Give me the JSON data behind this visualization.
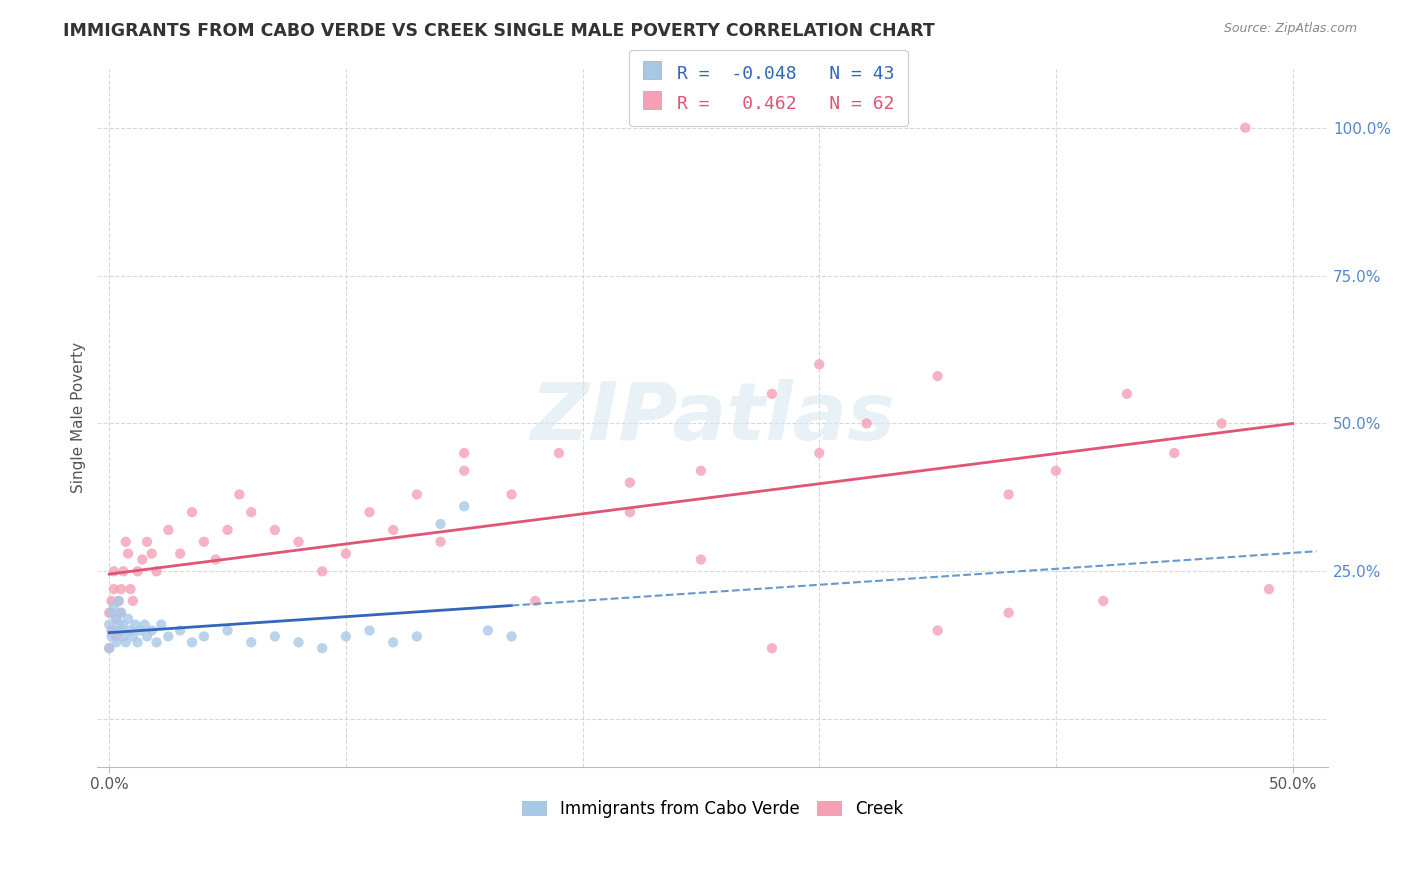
{
  "title": "IMMIGRANTS FROM CABO VERDE VS CREEK SINGLE MALE POVERTY CORRELATION CHART",
  "source_text": "Source: ZipAtlas.com",
  "ylabel": "Single Male Poverty",
  "legend_labels": [
    "Immigrants from Cabo Verde",
    "Creek"
  ],
  "R_cabo": -0.048,
  "N_cabo": 43,
  "R_creek": 0.462,
  "N_creek": 62,
  "x_ticks": [
    0.0,
    0.1,
    0.2,
    0.3,
    0.4,
    0.5
  ],
  "y_ticks_right": [
    0.0,
    0.25,
    0.5,
    0.75,
    1.0
  ],
  "y_tick_labels_right": [
    "",
    "25.0%",
    "50.0%",
    "75.0%",
    "100.0%"
  ],
  "xlim": [
    -0.005,
    0.515
  ],
  "ylim": [
    -0.08,
    1.1
  ],
  "color_cabo": "#a8c8e8",
  "color_creek": "#f4a0b5",
  "trend_color_cabo_solid": "#3366bb",
  "trend_color_cabo_dash": "#6699cc",
  "trend_color_creek": "#e05575",
  "background_color": "#ffffff",
  "grid_color": "#d8d8d8",
  "watermark": "ZIPatlas",
  "cabo_x": [
    0.0,
    0.0,
    0.001,
    0.001,
    0.002,
    0.002,
    0.003,
    0.003,
    0.004,
    0.004,
    0.005,
    0.005,
    0.006,
    0.006,
    0.007,
    0.008,
    0.009,
    0.01,
    0.011,
    0.012,
    0.013,
    0.015,
    0.016,
    0.018,
    0.02,
    0.022,
    0.025,
    0.03,
    0.035,
    0.04,
    0.05,
    0.06,
    0.07,
    0.08,
    0.09,
    0.1,
    0.11,
    0.12,
    0.13,
    0.14,
    0.15,
    0.16,
    0.17
  ],
  "cabo_y": [
    0.12,
    0.16,
    0.14,
    0.18,
    0.15,
    0.19,
    0.13,
    0.17,
    0.16,
    0.2,
    0.15,
    0.18,
    0.14,
    0.16,
    0.13,
    0.17,
    0.15,
    0.14,
    0.16,
    0.13,
    0.15,
    0.16,
    0.14,
    0.15,
    0.13,
    0.16,
    0.14,
    0.15,
    0.13,
    0.14,
    0.15,
    0.13,
    0.14,
    0.13,
    0.12,
    0.14,
    0.15,
    0.13,
    0.14,
    0.33,
    0.36,
    0.15,
    0.14
  ],
  "creek_x": [
    0.0,
    0.0,
    0.001,
    0.001,
    0.002,
    0.002,
    0.003,
    0.003,
    0.004,
    0.005,
    0.005,
    0.006,
    0.007,
    0.008,
    0.009,
    0.01,
    0.012,
    0.014,
    0.016,
    0.018,
    0.02,
    0.025,
    0.03,
    0.035,
    0.04,
    0.045,
    0.05,
    0.055,
    0.06,
    0.07,
    0.08,
    0.09,
    0.1,
    0.11,
    0.12,
    0.13,
    0.14,
    0.15,
    0.17,
    0.19,
    0.22,
    0.25,
    0.28,
    0.3,
    0.32,
    0.35,
    0.38,
    0.4,
    0.43,
    0.45,
    0.47,
    0.49,
    0.3,
    0.22,
    0.18,
    0.25,
    0.15,
    0.35,
    0.42,
    0.38,
    0.28,
    0.48
  ],
  "creek_y": [
    0.12,
    0.18,
    0.15,
    0.2,
    0.22,
    0.25,
    0.14,
    0.17,
    0.2,
    0.18,
    0.22,
    0.25,
    0.3,
    0.28,
    0.22,
    0.2,
    0.25,
    0.27,
    0.3,
    0.28,
    0.25,
    0.32,
    0.28,
    0.35,
    0.3,
    0.27,
    0.32,
    0.38,
    0.35,
    0.32,
    0.3,
    0.25,
    0.28,
    0.35,
    0.32,
    0.38,
    0.3,
    0.42,
    0.38,
    0.45,
    0.4,
    0.42,
    0.55,
    0.45,
    0.5,
    0.58,
    0.38,
    0.42,
    0.55,
    0.45,
    0.5,
    0.22,
    0.6,
    0.35,
    0.2,
    0.27,
    0.45,
    0.15,
    0.2,
    0.18,
    0.12,
    1.0
  ]
}
